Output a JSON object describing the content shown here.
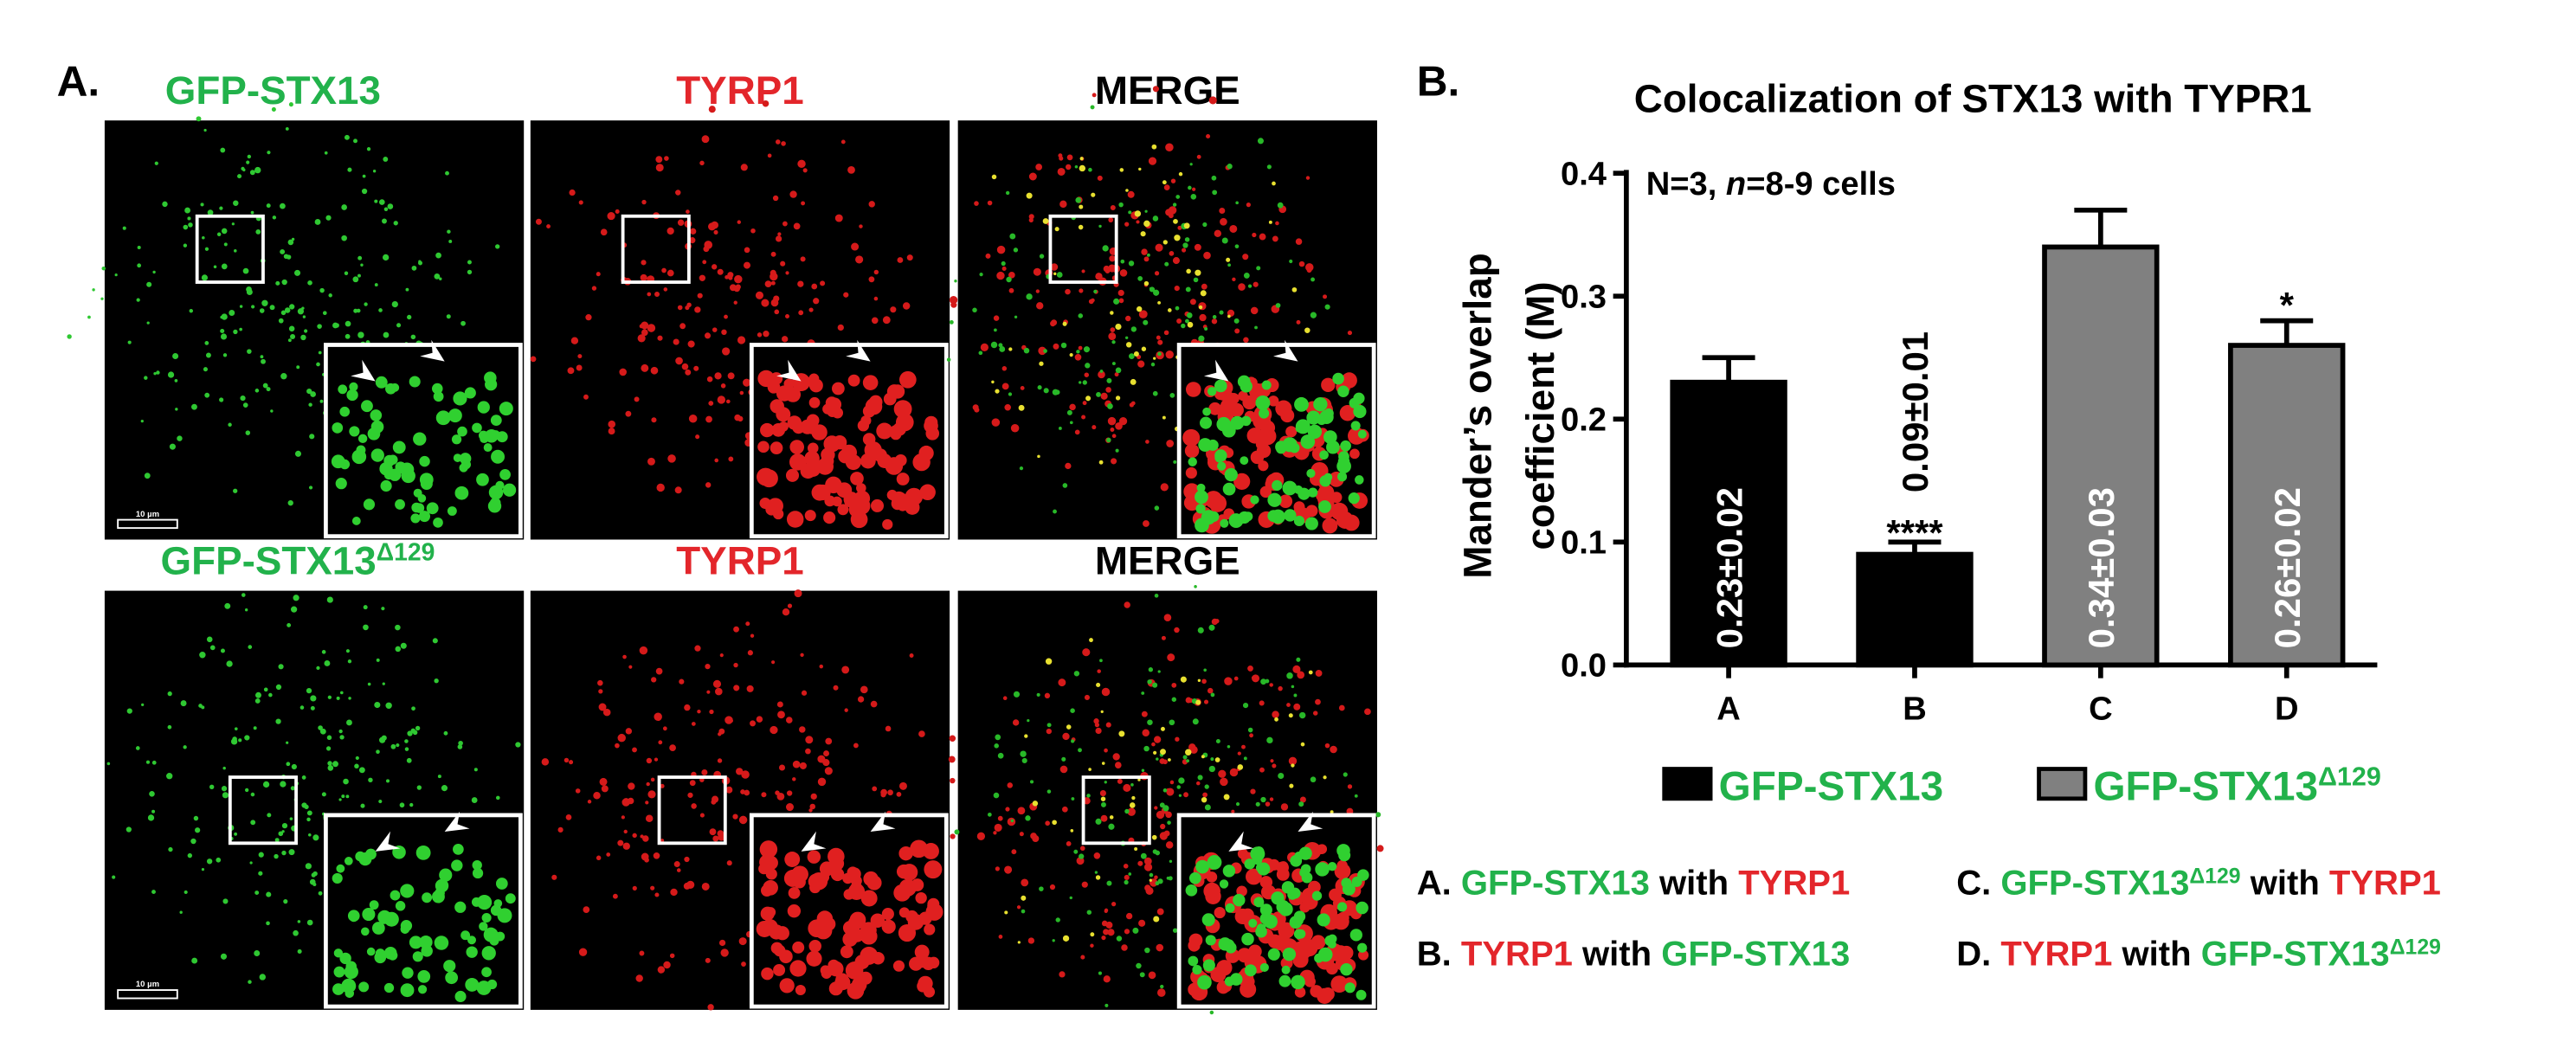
{
  "panel_labels": [
    "A.",
    "B."
  ],
  "images": {
    "rows": [
      {
        "titles": [
          {
            "text": "GFP-STX13",
            "color": "#22b24b"
          },
          {
            "text": "TYRP1",
            "color": "#e3262b"
          },
          {
            "text": "MERGE",
            "color": "#000000"
          }
        ],
        "scale_bar": "10 µm"
      },
      {
        "titles": [
          {
            "text": "GFP-STX13",
            "sup": "Δ129",
            "color": "#22b24b"
          },
          {
            "text": "TYRP1",
            "color": "#e3262b"
          },
          {
            "text": "MERGE",
            "color": "#000000"
          }
        ],
        "scale_bar": "10 µm"
      }
    ]
  },
  "chart_data": {
    "type": "bar",
    "title": "Colocalization of STX13 with TYPR1",
    "annotation": [
      {
        "text": "N=3, "
      },
      {
        "text": "n",
        "italic": true
      },
      {
        "text": "=8-9 cells"
      }
    ],
    "ylabel": [
      "Mander’s overlap",
      "coefficient (M)"
    ],
    "categories": [
      "A",
      "B",
      "C",
      "D"
    ],
    "values": [
      0.23,
      0.09,
      0.34,
      0.26
    ],
    "errors": [
      0.02,
      0.01,
      0.03,
      0.02
    ],
    "value_labels": [
      "0.23±0.02",
      "0.09±0.01",
      "0.34±0.03",
      "0.26±0.02"
    ],
    "significance": [
      null,
      "****",
      null,
      "*"
    ],
    "colors": [
      "#000000",
      "#000000",
      "#808080",
      "#808080"
    ],
    "ylim": [
      0,
      0.4
    ],
    "yticks": [
      {
        "value": 0,
        "label": "0.0"
      },
      0.1,
      0.2,
      0.3,
      0.4
    ],
    "legend": [
      {
        "text": "GFP-STX13",
        "color": "#000000"
      },
      {
        "text": "GFP-STX13",
        "sup": "Δ129",
        "color": "#808080"
      }
    ]
  },
  "captions": [
    [
      {
        "text": "A. ",
        "color": "#000000"
      },
      {
        "text": "GFP-STX13",
        "color": "#22b24b"
      },
      {
        "text": " with ",
        "color": "#000000"
      },
      {
        "text": "TYRP1",
        "color": "#e3262b"
      }
    ],
    [
      {
        "text": "C. ",
        "color": "#000000"
      },
      {
        "text": "GFP-STX13",
        "color": "#22b24b"
      },
      {
        "text": "Δ129",
        "sup": true,
        "color": "#22b24b"
      },
      {
        "text": " with ",
        "color": "#000000"
      },
      {
        "text": "TYRP1",
        "color": "#e3262b"
      }
    ],
    [
      {
        "text": "B. ",
        "color": "#000000"
      },
      {
        "text": "TYRP1",
        "color": "#e3262b"
      },
      {
        "text": " with ",
        "color": "#000000"
      },
      {
        "text": "GFP-STX13",
        "color": "#22b24b"
      }
    ],
    [
      {
        "text": "D. ",
        "color": "#000000"
      },
      {
        "text": "TYRP1",
        "color": "#e3262b"
      },
      {
        "text": " with ",
        "color": "#000000"
      },
      {
        "text": "GFP-STX13",
        "color": "#22b24b"
      },
      {
        "text": "Δ129",
        "sup": true,
        "color": "#22b24b"
      }
    ]
  ]
}
